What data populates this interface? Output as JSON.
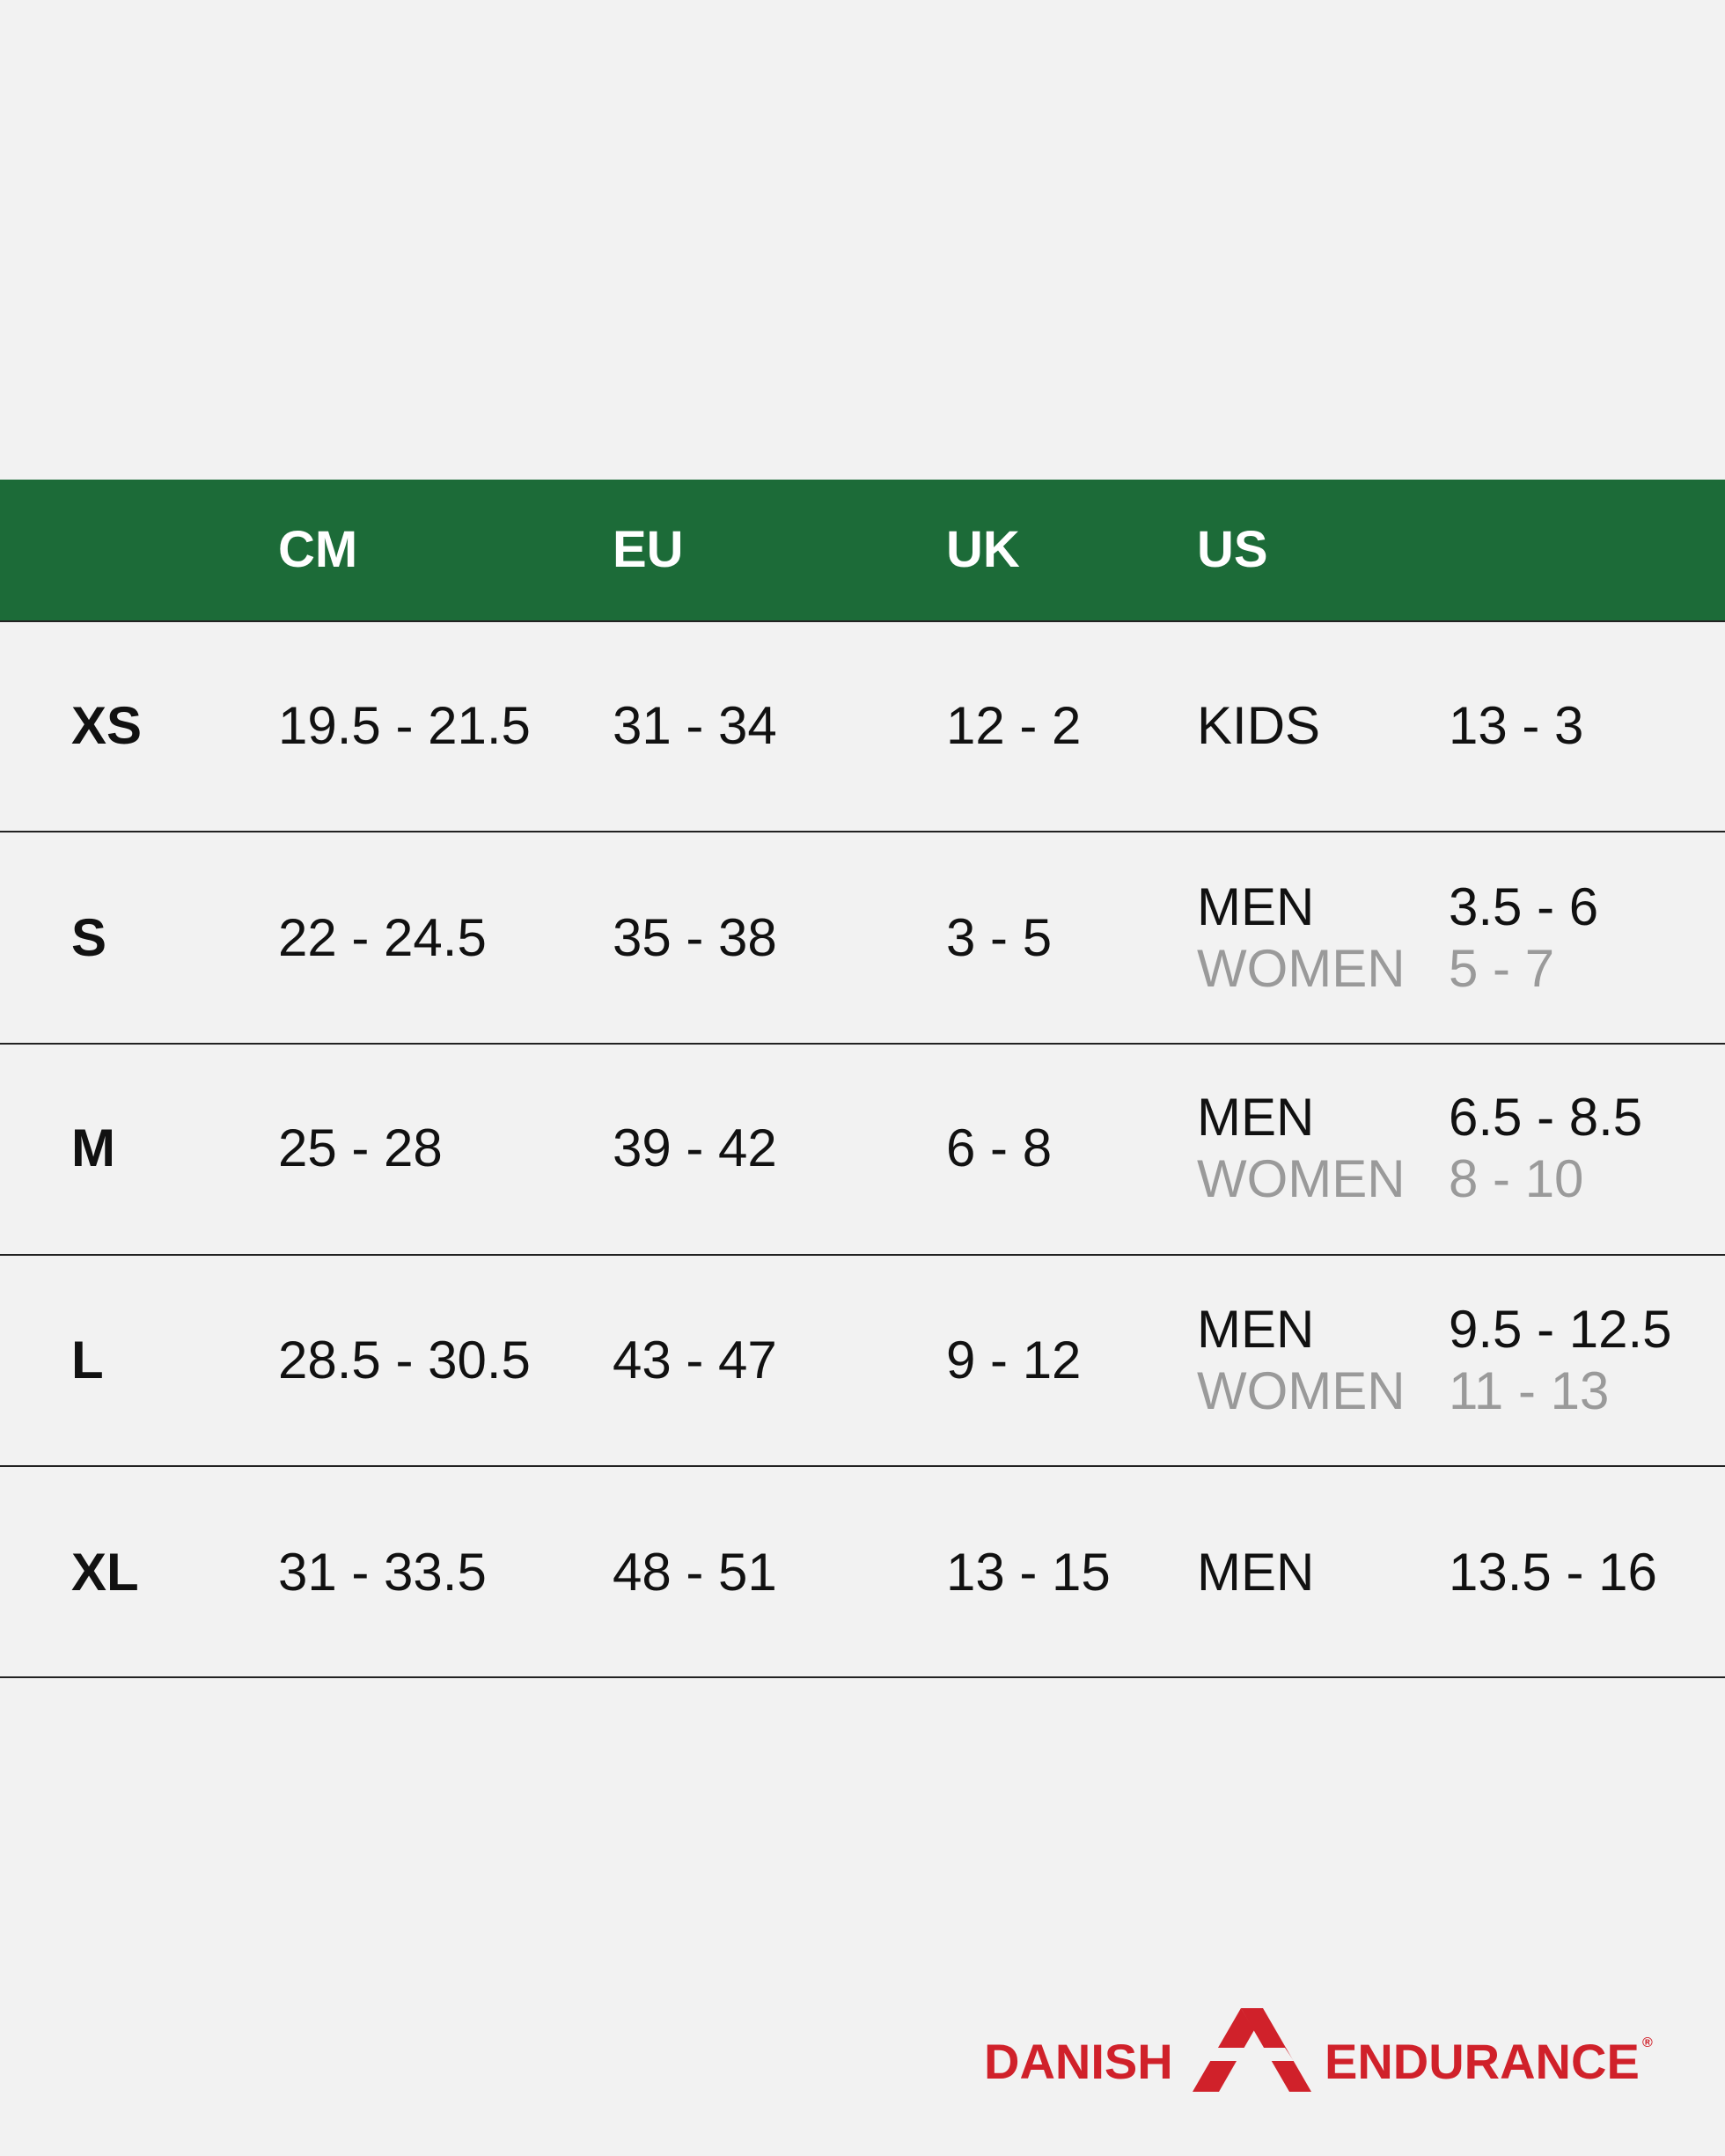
{
  "header": {
    "columns": [
      "CM",
      "EU",
      "UK",
      "US"
    ]
  },
  "rows": [
    {
      "size": "XS",
      "cm": "19.5 - 21.5",
      "eu": "31 - 34",
      "uk": "12 - 2",
      "us": [
        {
          "group": "KIDS",
          "range": "13 - 3"
        }
      ]
    },
    {
      "size": "S",
      "cm": "22 - 24.5",
      "eu": "35 - 38",
      "uk": "3 - 5",
      "us": [
        {
          "group": "MEN",
          "range": "3.5 - 6"
        },
        {
          "group": "WOMEN",
          "range": "5 - 7"
        }
      ]
    },
    {
      "size": "M",
      "cm": "25 - 28",
      "eu": "39 - 42",
      "uk": "6 - 8",
      "us": [
        {
          "group": "MEN",
          "range": "6.5 - 8.5"
        },
        {
          "group": "WOMEN",
          "range": "8 - 10"
        }
      ]
    },
    {
      "size": "L",
      "cm": "28.5 - 30.5",
      "eu": "43 - 47",
      "uk": "9 - 12",
      "us": [
        {
          "group": "MEN",
          "range": "9.5 - 12.5"
        },
        {
          "group": "WOMEN",
          "range": "11 - 13"
        }
      ]
    },
    {
      "size": "XL",
      "cm": "31 - 33.5",
      "eu": "48 - 51",
      "uk": "13 - 15",
      "us": [
        {
          "group": "MEN",
          "range": "13.5 - 16"
        }
      ]
    }
  ],
  "brand": {
    "left": "DANISH",
    "right": "ENDURANCE",
    "mark": "®"
  }
}
